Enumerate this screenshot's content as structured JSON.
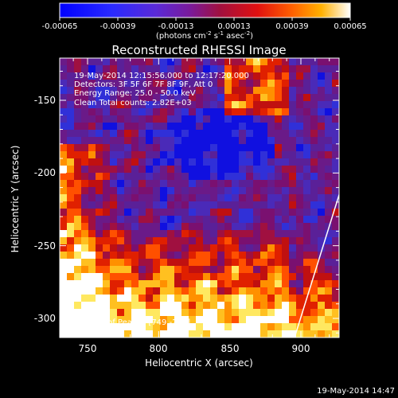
{
  "colorbar": {
    "ticks": [
      "-0.00065",
      "-0.00039",
      "-0.00013",
      "0.00013",
      "0.00039",
      "0.00065"
    ],
    "units_prefix": "(photons cm",
    "units_exp1": "-2",
    "units_mid": " s",
    "units_exp2": "-1",
    "units_mid2": " asec",
    "units_exp3": "-2",
    "units_suffix": ")"
  },
  "title": "Reconstructed RHESSI Image",
  "annotations": {
    "time_range": "19-May-2014 12:15:56.000 to 12:17:20.000",
    "detectors": "Detectors: 3F 5F 6F 7F 8F 9F, Att 0",
    "energy": "Energy Range: 25.0 - 50.0 keV",
    "clean": "Clean    Total counts: 2.82E+03",
    "peak": "Position of Peak = [749,-287]"
  },
  "axes": {
    "xlabel": "Heliocentric X (arcsec)",
    "ylabel": "Heliocentric Y (arcsec)",
    "xticks": [
      "750",
      "800",
      "850",
      "900"
    ],
    "yticks": [
      "-150",
      "-200",
      "-250",
      "-300"
    ]
  },
  "footer_date": "19-May-2014 14:47",
  "colors": {
    "background": "#000000",
    "limb_line": "#ffffff"
  }
}
